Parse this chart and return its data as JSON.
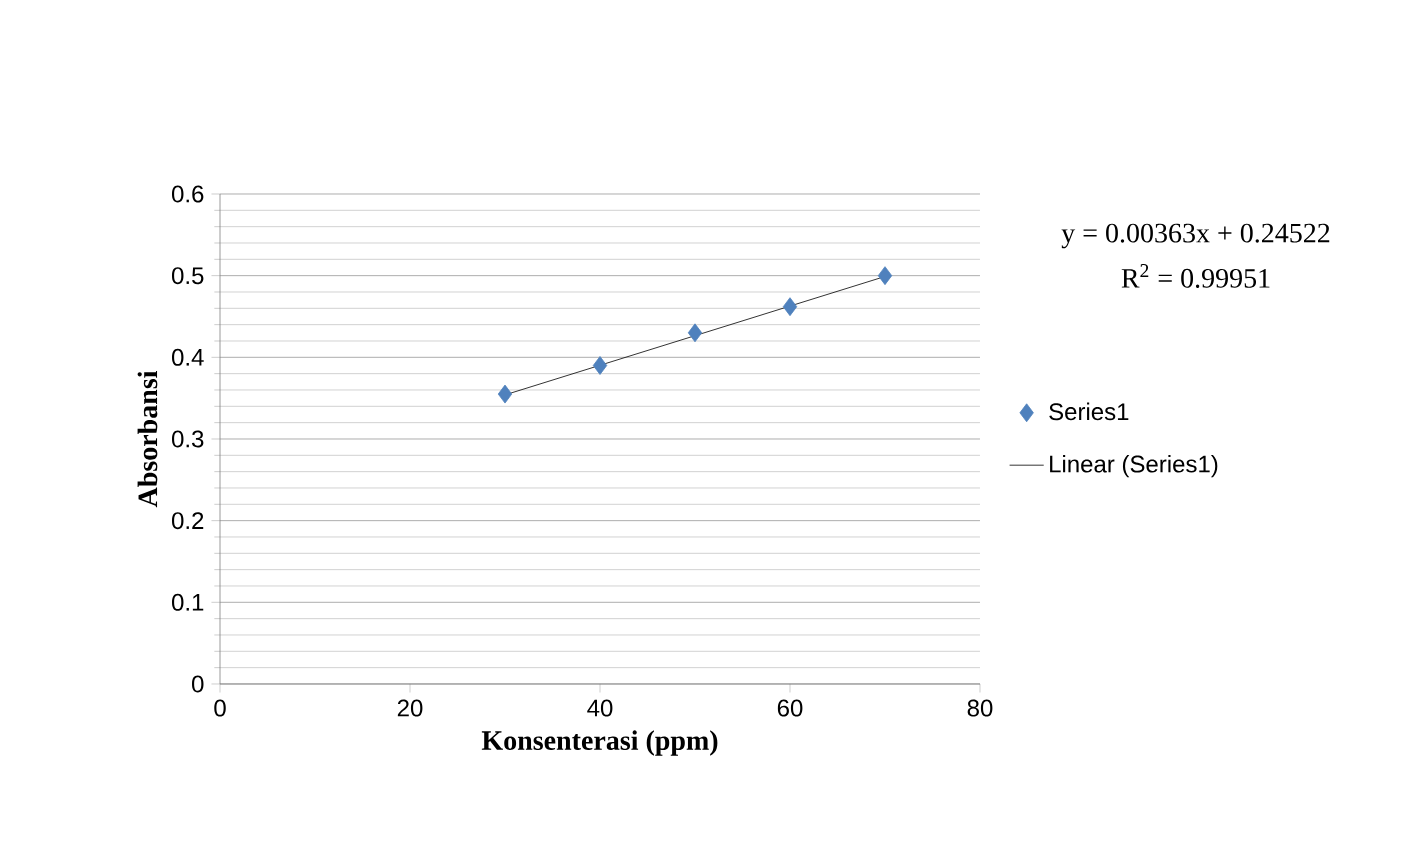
{
  "chart_data": {
    "type": "scatter",
    "xlabel": "Konsenterasi (ppm)",
    "ylabel": "Absorbansi",
    "annotations": [
      "y = 0.00363x + 0.24522",
      "R$^{2}$ = 0.99951"
    ],
    "series": [
      {
        "name": "Series1",
        "color": "#4f81bd",
        "marker": "diamond",
        "x": [
          30,
          40,
          50,
          60,
          70
        ],
        "values": [
          0.355,
          0.39,
          0.43,
          0.462,
          0.5
        ]
      },
      {
        "name": "Linear (Series1)",
        "color": "#000000",
        "type": "line",
        "marker": "none",
        "x": [
          30,
          70
        ],
        "values": [
          0.354,
          0.499
        ]
      }
    ],
    "xlim": [
      0,
      80
    ],
    "xticks": [
      0,
      20,
      40,
      60,
      80
    ],
    "ylim": [
      0,
      0.6
    ],
    "yticks": [
      0,
      0.1,
      0.2,
      0.3,
      0.4,
      0.5,
      0.6
    ],
    "grid": "y",
    "legend": "right"
  }
}
